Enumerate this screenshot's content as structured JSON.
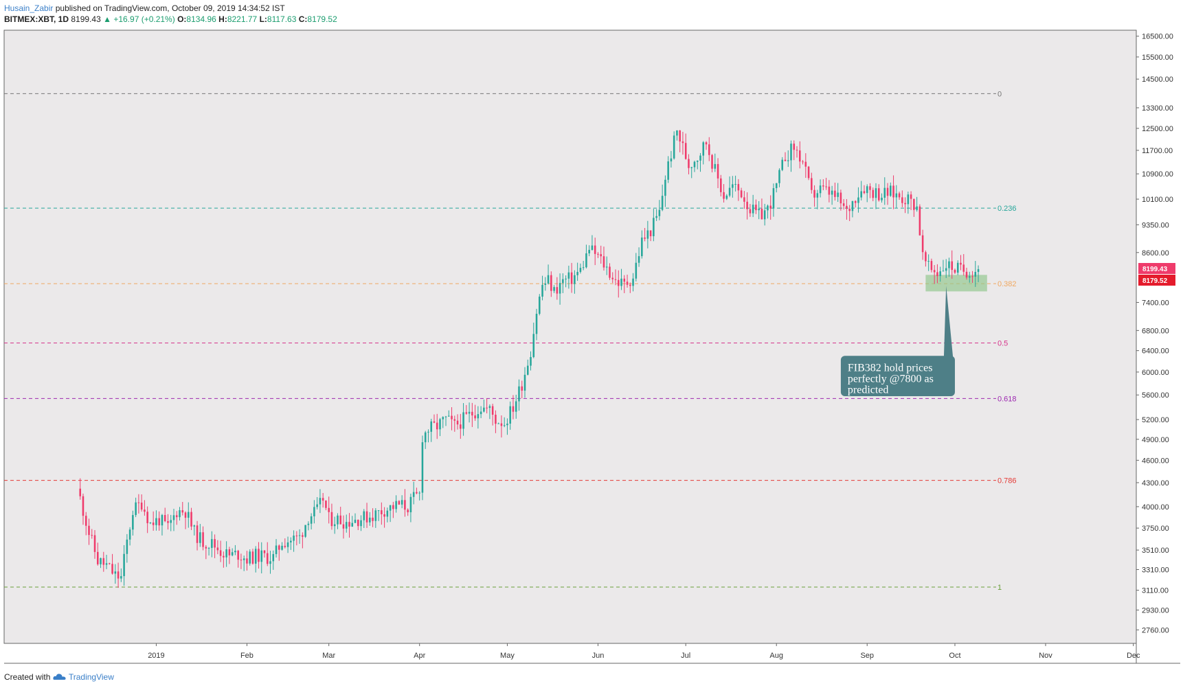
{
  "header": {
    "author": "Husain_Zabir",
    "published": "published on TradingView.com, October 09, 2019 14:34:52 IST",
    "symbol": "BITMEX:XBT, 1D",
    "last": "8199.43",
    "change_arrow": "▲",
    "change": "+16.97 (+0.21%)",
    "o_label": "O:",
    "o_value": "8134.96",
    "h_label": "H:",
    "h_value": "8221.77",
    "l_label": "L:",
    "l_value": "8117.63",
    "c_label": "C:",
    "c_value": "8179.52"
  },
  "footer": {
    "created_with": "Created with",
    "brand": "TradingView"
  },
  "colors": {
    "up": "#26a69a",
    "down": "#ef3b6b",
    "background": "#ebe9ea",
    "callout": "#4e7f87",
    "zone": "#8fc68a",
    "last_price_tag": "#ef3b6b",
    "close_tag": "#e41b2c"
  },
  "chart_data": {
    "type": "candlestick",
    "title": "BITMEX:XBT, 1D",
    "scale": "log",
    "ylim": [
      2650,
      16800
    ],
    "x_range_days": [
      -26,
      361
    ],
    "x_origin": "2018-12-06",
    "y_ticks": [
      "16500.00",
      "15500.00",
      "14500.00",
      "13300.00",
      "12500.00",
      "11700.00",
      "10900.00",
      "10100.00",
      "9350.00",
      "8600.00",
      "7400.00",
      "6800.00",
      "6400.00",
      "6000.00",
      "5600.00",
      "5200.00",
      "4900.00",
      "4600.00",
      "4300.00",
      "4000.00",
      "3750.00",
      "3510.00",
      "3310.00",
      "3110.00",
      "2930.00",
      "2760.00"
    ],
    "x_ticks": [
      {
        "label": "2019",
        "day": 26
      },
      {
        "label": "Feb",
        "day": 57
      },
      {
        "label": "Mar",
        "day": 85
      },
      {
        "label": "Apr",
        "day": 116
      },
      {
        "label": "May",
        "day": 146
      },
      {
        "label": "Jun",
        "day": 177
      },
      {
        "label": "Jul",
        "day": 207
      },
      {
        "label": "Aug",
        "day": 238
      },
      {
        "label": "Sep",
        "day": 269
      },
      {
        "label": "Oct",
        "day": 299
      },
      {
        "label": "Nov",
        "day": 330
      },
      {
        "label": "Dec",
        "day": 360
      }
    ],
    "anchors": [
      {
        "day": 0,
        "price": 4100
      },
      {
        "day": 3,
        "price": 3700
      },
      {
        "day": 6,
        "price": 3400
      },
      {
        "day": 9,
        "price": 3350
      },
      {
        "day": 12,
        "price": 3250
      },
      {
        "day": 14,
        "price": 3230
      },
      {
        "day": 16,
        "price": 3600
      },
      {
        "day": 18,
        "price": 3950
      },
      {
        "day": 21,
        "price": 4050
      },
      {
        "day": 24,
        "price": 3800
      },
      {
        "day": 27,
        "price": 3850
      },
      {
        "day": 30,
        "price": 3750
      },
      {
        "day": 33,
        "price": 3950
      },
      {
        "day": 36,
        "price": 3950
      },
      {
        "day": 39,
        "price": 3700
      },
      {
        "day": 42,
        "price": 3600
      },
      {
        "day": 45,
        "price": 3580
      },
      {
        "day": 48,
        "price": 3500
      },
      {
        "day": 51,
        "price": 3450
      },
      {
        "day": 54,
        "price": 3470
      },
      {
        "day": 57,
        "price": 3420
      },
      {
        "day": 60,
        "price": 3450
      },
      {
        "day": 63,
        "price": 3440
      },
      {
        "day": 66,
        "price": 3430
      },
      {
        "day": 69,
        "price": 3600
      },
      {
        "day": 72,
        "price": 3620
      },
      {
        "day": 75,
        "price": 3650
      },
      {
        "day": 78,
        "price": 3880
      },
      {
        "day": 81,
        "price": 3950
      },
      {
        "day": 83,
        "price": 4100
      },
      {
        "day": 85,
        "price": 3850
      },
      {
        "day": 88,
        "price": 3850
      },
      {
        "day": 91,
        "price": 3820
      },
      {
        "day": 94,
        "price": 3850
      },
      {
        "day": 97,
        "price": 3870
      },
      {
        "day": 100,
        "price": 3900
      },
      {
        "day": 103,
        "price": 3950
      },
      {
        "day": 106,
        "price": 3990
      },
      {
        "day": 109,
        "price": 4020
      },
      {
        "day": 112,
        "price": 4000
      },
      {
        "day": 114,
        "price": 4100
      },
      {
        "day": 116,
        "price": 4150
      },
      {
        "day": 117,
        "price": 4950
      },
      {
        "day": 119,
        "price": 5050
      },
      {
        "day": 122,
        "price": 5100
      },
      {
        "day": 125,
        "price": 5200
      },
      {
        "day": 128,
        "price": 5100
      },
      {
        "day": 131,
        "price": 5200
      },
      {
        "day": 134,
        "price": 5300
      },
      {
        "day": 137,
        "price": 5400
      },
      {
        "day": 140,
        "price": 5350
      },
      {
        "day": 142,
        "price": 5200
      },
      {
        "day": 145,
        "price": 5150
      },
      {
        "day": 148,
        "price": 5400
      },
      {
        "day": 151,
        "price": 5800
      },
      {
        "day": 154,
        "price": 6400
      },
      {
        "day": 156,
        "price": 7200
      },
      {
        "day": 158,
        "price": 7800
      },
      {
        "day": 160,
        "price": 7900
      },
      {
        "day": 162,
        "price": 7650
      },
      {
        "day": 165,
        "price": 7900
      },
      {
        "day": 168,
        "price": 7950
      },
      {
        "day": 171,
        "price": 8150
      },
      {
        "day": 174,
        "price": 8700
      },
      {
        "day": 177,
        "price": 8500
      },
      {
        "day": 180,
        "price": 8200
      },
      {
        "day": 183,
        "price": 7900
      },
      {
        "day": 186,
        "price": 7800
      },
      {
        "day": 189,
        "price": 8000
      },
      {
        "day": 192,
        "price": 8900
      },
      {
        "day": 195,
        "price": 9200
      },
      {
        "day": 198,
        "price": 9700
      },
      {
        "day": 200,
        "price": 10800
      },
      {
        "day": 202,
        "price": 11600
      },
      {
        "day": 204,
        "price": 12400
      },
      {
        "day": 206,
        "price": 11800
      },
      {
        "day": 208,
        "price": 11200
      },
      {
        "day": 211,
        "price": 11500
      },
      {
        "day": 214,
        "price": 12000
      },
      {
        "day": 217,
        "price": 11000
      },
      {
        "day": 220,
        "price": 10200
      },
      {
        "day": 223,
        "price": 10500
      },
      {
        "day": 226,
        "price": 10300
      },
      {
        "day": 229,
        "price": 9800
      },
      {
        "day": 232,
        "price": 9600
      },
      {
        "day": 235,
        "price": 9800
      },
      {
        "day": 238,
        "price": 10500
      },
      {
        "day": 241,
        "price": 11500
      },
      {
        "day": 244,
        "price": 11800
      },
      {
        "day": 247,
        "price": 11300
      },
      {
        "day": 250,
        "price": 10200
      },
      {
        "day": 253,
        "price": 10400
      },
      {
        "day": 256,
        "price": 10300
      },
      {
        "day": 259,
        "price": 10100
      },
      {
        "day": 262,
        "price": 9700
      },
      {
        "day": 265,
        "price": 10200
      },
      {
        "day": 268,
        "price": 10500
      },
      {
        "day": 271,
        "price": 10350
      },
      {
        "day": 274,
        "price": 10250
      },
      {
        "day": 277,
        "price": 10300
      },
      {
        "day": 280,
        "price": 10200
      },
      {
        "day": 283,
        "price": 10100
      },
      {
        "day": 286,
        "price": 9900
      },
      {
        "day": 288,
        "price": 8500
      },
      {
        "day": 290,
        "price": 8200
      },
      {
        "day": 293,
        "price": 8100
      },
      {
        "day": 296,
        "price": 8300
      },
      {
        "day": 299,
        "price": 8200
      },
      {
        "day": 302,
        "price": 8150
      },
      {
        "day": 305,
        "price": 8150
      },
      {
        "day": 307,
        "price": 8179.52
      }
    ],
    "fib_levels": [
      {
        "label": "0",
        "price": 13880,
        "color": "#777777"
      },
      {
        "label": "0.236",
        "price": 9830,
        "color": "#26a69a"
      },
      {
        "label": "0.382",
        "price": 7830,
        "color": "#f0a860"
      },
      {
        "label": "0.5",
        "price": 6550,
        "color": "#d6338a"
      },
      {
        "label": "0.618",
        "price": 5540,
        "color": "#9c27b0"
      },
      {
        "label": "0.786",
        "price": 4330,
        "color": "#e53935"
      },
      {
        "label": "1",
        "price": 3140,
        "color": "#689f38"
      }
    ],
    "zone": {
      "day_start": 289,
      "day_end": 310,
      "price_low": 7650,
      "price_high": 8040
    },
    "annotation": {
      "lines": [
        "FIB382 hold prices",
        "perfectly @7800 as",
        "predicted"
      ],
      "anchor_day": 296,
      "anchor_price": 7780,
      "box_day_start": 260,
      "box_day_end": 299,
      "box_price_top": 6300,
      "box_price_bottom": 5580
    },
    "last_price_tag": "8199.43",
    "close_tag": "8179.52"
  }
}
